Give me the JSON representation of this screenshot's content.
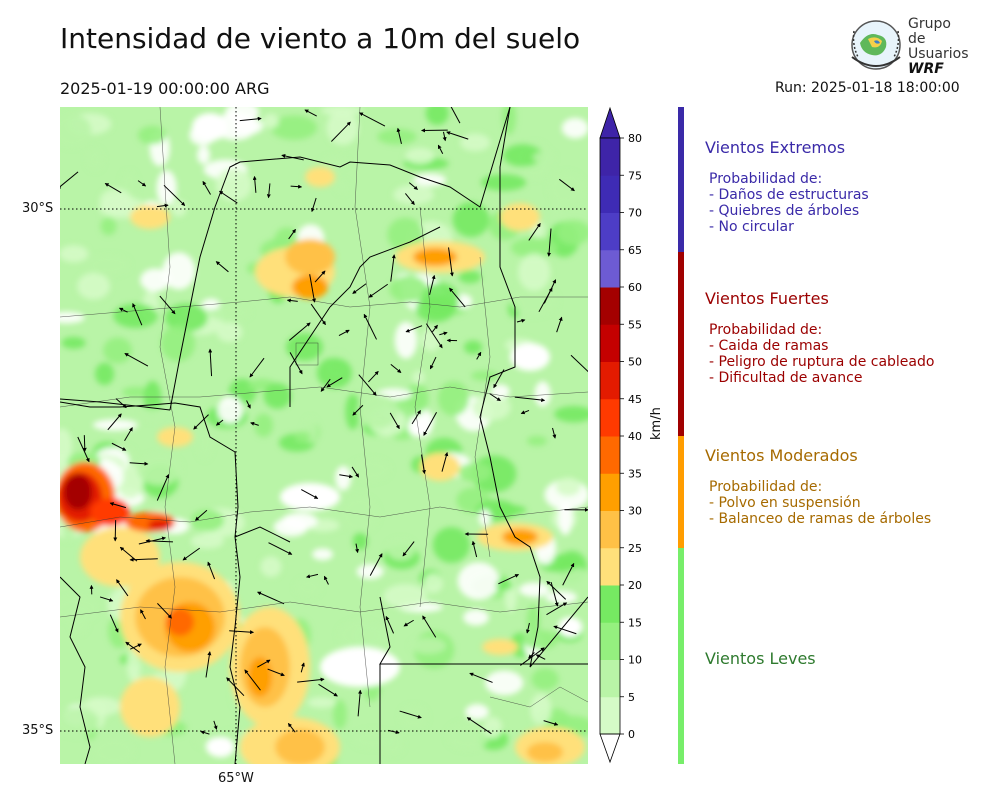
{
  "header": {
    "title": "Intensidad de viento a 10m del suelo",
    "valid_time": "2025-01-19 00:00:00 ARG",
    "run_time": "Run: 2025-01-18 18:00:00"
  },
  "logo": {
    "line1": "Grupo de",
    "line2": "Usuarios",
    "line3": "WRF"
  },
  "map": {
    "lat_labels": [
      "30°S",
      "35°S"
    ],
    "lon_labels": [
      "65°W"
    ]
  },
  "colorbar": {
    "units": "km/h",
    "ticks": [
      "0",
      "5",
      "10",
      "15",
      "20",
      "25",
      "30",
      "35",
      "40",
      "45",
      "50",
      "55",
      "60",
      "65",
      "70",
      "75",
      "80"
    ],
    "colors": [
      "#ffffff",
      "#d5fbc7",
      "#b9f4a7",
      "#95f07f",
      "#76e962",
      "#ffe07a",
      "#ffc146",
      "#ff9f00",
      "#ff6900",
      "#ff3a00",
      "#e31b00",
      "#c40000",
      "#a40000",
      "#6d5bd3",
      "#4d3dc6",
      "#3e2bb5",
      "#3e24a8"
    ]
  },
  "legend": [
    {
      "title": "Vientos Extremos",
      "color": "#3a2aa8",
      "bar_color": "#3a2aa8",
      "lines": [
        "Probabilidad de:",
        "- Daños de estructuras",
        "- Quiebres de árboles",
        "- No circular"
      ]
    },
    {
      "title": "Vientos Fuertes",
      "color": "#9b0000",
      "bar_color": "#a00000",
      "lines": [
        "Probabilidad de:",
        "- Caida de ramas",
        "- Peligro de ruptura de cableado",
        "- Dificultad de avance"
      ]
    },
    {
      "title": "Vientos Moderados",
      "color": "#a66a00",
      "bar_color": "#ff9d00",
      "lines": [
        "Probabilidad de:",
        "- Polvo en suspensión",
        "- Balanceo de ramas de árboles"
      ]
    },
    {
      "title": "Vientos Leves",
      "color": "#2e7a2e",
      "bar_color": "#77ee6a",
      "lines": []
    }
  ]
}
